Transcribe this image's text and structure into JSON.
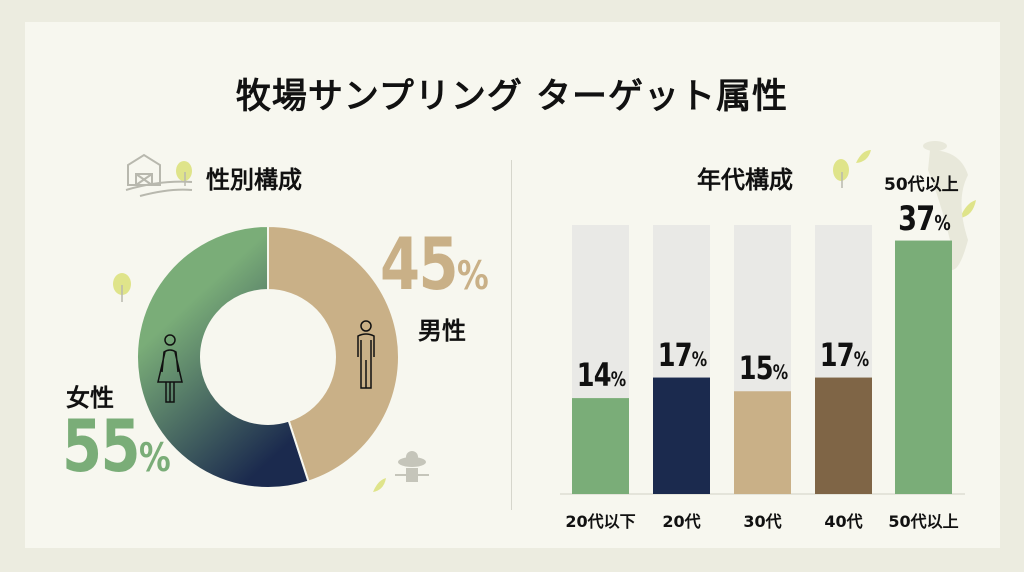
{
  "title": "牧場サンプリング ターゲット属性",
  "chart_data": [
    {
      "type": "pie",
      "title": "性別構成",
      "slices": [
        {
          "label": "男性",
          "value": 45,
          "display": "45",
          "unit": "%",
          "color": "#c9b087",
          "icon": "male-person-icon"
        },
        {
          "label": "女性",
          "value": 55,
          "display": "55",
          "unit": "%",
          "color_gradient": [
            "#7aad78",
            "#1b2a4e"
          ],
          "icon": "female-person-icon"
        }
      ]
    },
    {
      "type": "bar",
      "title": "年代構成",
      "categories": [
        "20代以下",
        "20代",
        "30代",
        "40代",
        "50代以上"
      ],
      "values": [
        14,
        17,
        15,
        17,
        37
      ],
      "display": [
        "14",
        "17",
        "15",
        "17",
        "37"
      ],
      "unit": "%",
      "colors": [
        "#7aad78",
        "#1b2a4e",
        "#c9b087",
        "#7f6546",
        "#7aad78"
      ],
      "highlight_label": "50代以上",
      "ylim": [
        0,
        39
      ]
    }
  ]
}
